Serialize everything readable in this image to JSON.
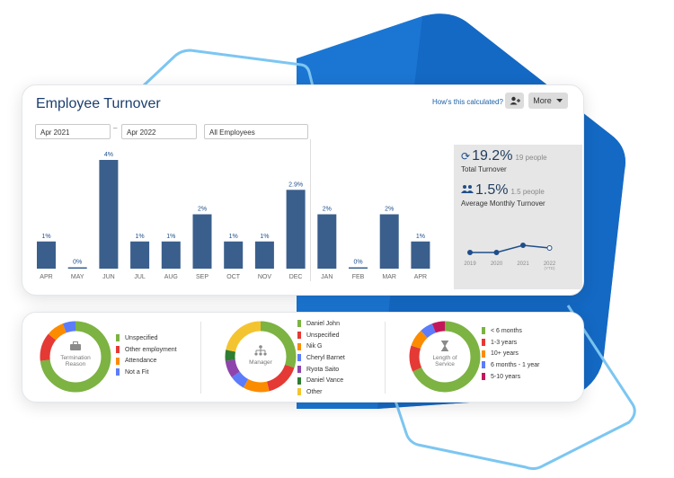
{
  "header": {
    "title": "Employee Turnover",
    "help_link": "How's this calculated?",
    "more_label": "More",
    "more_icon": "caret-down-icon",
    "add_user_icon": "person-add-icon"
  },
  "filters": {
    "start_date": "Apr 2021",
    "separator": "–",
    "end_date": "Apr 2022",
    "group": "All Employees"
  },
  "chart_data": {
    "type": "bar",
    "categories": [
      "APR",
      "MAY",
      "JUN",
      "JUL",
      "AUG",
      "SEP",
      "OCT",
      "NOV",
      "DEC",
      "JAN",
      "FEB",
      "MAR",
      "APR"
    ],
    "values": [
      1,
      0,
      4,
      1,
      1,
      2,
      1,
      1,
      2.9,
      2,
      0,
      2,
      1
    ],
    "labels": [
      "1%",
      "0%",
      "4%",
      "1%",
      "1%",
      "2%",
      "1%",
      "1%",
      "2.9%",
      "2%",
      "0%",
      "2%",
      "1%"
    ],
    "unit": "%",
    "year_divider_after_index": 8,
    "color": "#3a5f8c",
    "ylim": [
      0,
      4
    ],
    "grid": false
  },
  "stats": {
    "total": {
      "icon": "refresh-icon",
      "value": "19.2%",
      "people": "19 people",
      "label": "Total Turnover"
    },
    "average": {
      "icon": "people-icon",
      "value": "1.5%",
      "people": "1.5 people",
      "label": "Average Monthly Turnover"
    },
    "trend": {
      "years": [
        "2019",
        "2020",
        "2021",
        "2022"
      ],
      "ytd_label": "(YTD)",
      "values": [
        1.0,
        1.0,
        1.8,
        1.5
      ],
      "line_color": "#1f4e8a"
    }
  },
  "donuts": [
    {
      "name": "termination-reason",
      "center": [
        "Termination",
        "Reason"
      ],
      "icon": "briefcase-icon",
      "segments": [
        {
          "label": "Unspecified",
          "value": 73,
          "color": "#7cb342"
        },
        {
          "label": "Other employment",
          "value": 13,
          "color": "#e53935"
        },
        {
          "label": "Attendance",
          "value": 8,
          "color": "#fb8c00"
        },
        {
          "label": "Not a Fit",
          "value": 6,
          "color": "#5c7cfa"
        }
      ]
    },
    {
      "name": "manager",
      "center": [
        "Manager"
      ],
      "icon": "org-chart-icon",
      "segments": [
        {
          "label": "Daniel John",
          "value": 30,
          "color": "#7cb342"
        },
        {
          "label": "Unspecified",
          "value": 16,
          "color": "#e53935"
        },
        {
          "label": "Nik G",
          "value": 12,
          "color": "#fb8c00"
        },
        {
          "label": "Cheryl Barnet",
          "value": 7,
          "color": "#5c7cfa"
        },
        {
          "label": "Ryota Saito",
          "value": 8,
          "color": "#8e44ad"
        },
        {
          "label": "Daniel Vance",
          "value": 5,
          "color": "#2e7d32"
        },
        {
          "label": "Other",
          "value": 22,
          "color": "#f4c430"
        }
      ]
    },
    {
      "name": "length-of-service",
      "center": [
        "Length of",
        "Service"
      ],
      "icon": "hourglass-icon",
      "segments": [
        {
          "label": "< 6 months",
          "value": 68,
          "color": "#7cb342"
        },
        {
          "label": "1-3 years",
          "value": 12,
          "color": "#e53935"
        },
        {
          "label": "10+ years",
          "value": 8,
          "color": "#fb8c00"
        },
        {
          "label": "6 months - 1 year",
          "value": 6,
          "color": "#5c7cfa"
        },
        {
          "label": "5-10 years",
          "value": 6,
          "color": "#c2185b"
        }
      ]
    }
  ]
}
